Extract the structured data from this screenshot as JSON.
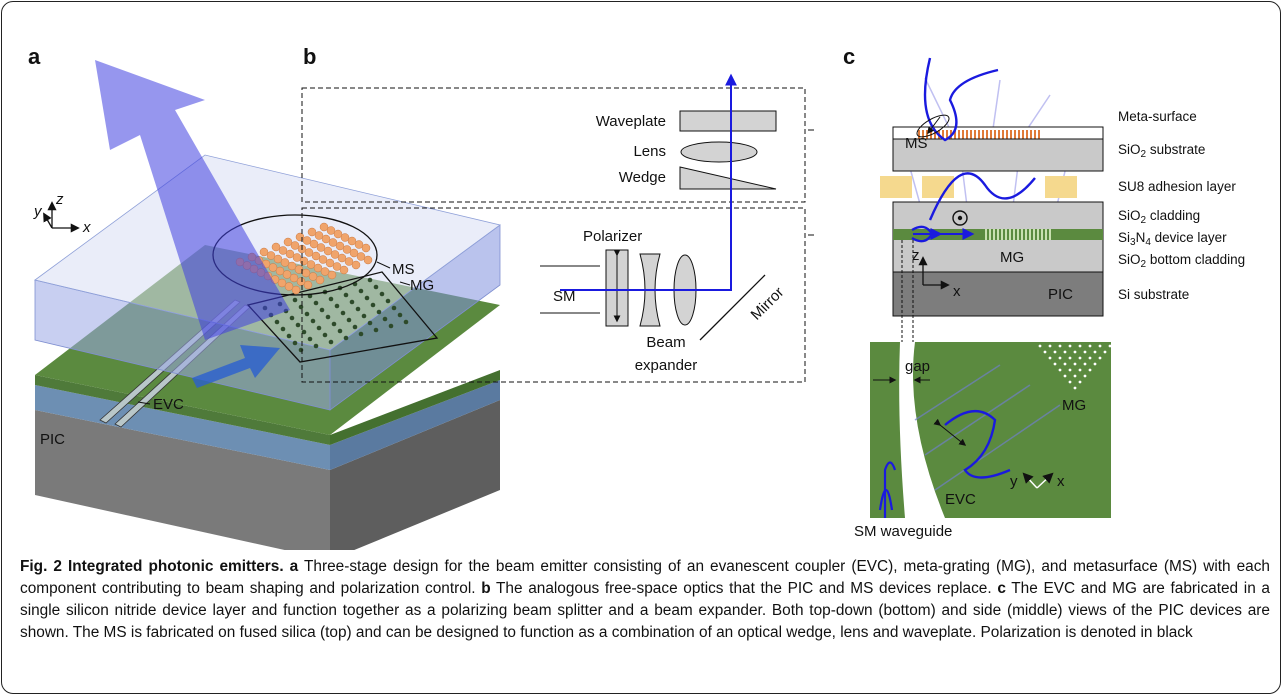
{
  "panel_a": {
    "label": "a",
    "axis_z": "z",
    "axis_y": "y",
    "axis_x": "x",
    "ms": "MS",
    "mg": "MG",
    "evc": "EVC",
    "pic": "PIC"
  },
  "panel_b": {
    "label": "b",
    "waveplate": "Waveplate",
    "lens": "Lens",
    "wedge": "Wedge",
    "polarizer": "Polarizer",
    "sm": "SM",
    "beam": "Beam",
    "expander": "expander",
    "mirror": "Mirror"
  },
  "panel_c": {
    "label": "c",
    "ms": "MS",
    "layers": [
      [
        "Meta-surface"
      ],
      [
        "SiO",
        "2",
        " substrate"
      ],
      [
        "SU8 adhesion layer"
      ],
      [
        "SiO",
        "2",
        " cladding"
      ],
      [
        "Si",
        "3",
        "N",
        "4",
        " device layer"
      ],
      [
        "SiO",
        "2",
        " bottom cladding"
      ],
      [
        "Si substrate"
      ]
    ],
    "axis_z": "z",
    "axis_x": "x",
    "mg_side": "MG",
    "pic": "PIC",
    "gap": "gap",
    "mg_top": "MG",
    "axis_y2": "y",
    "axis_x2": "x",
    "evc": "EVC",
    "sm_waveguide": "SM waveguide"
  },
  "caption": {
    "title": "Fig. 2 Integrated photonic emitters.",
    "parts": [
      {
        "label": "a",
        "text": "Three-stage design for the beam emitter consisting of an evanescent coupler (EVC), meta-grating (MG), and metasurface (MS) with each component contributing to beam shaping and polarization control."
      },
      {
        "label": "b",
        "text": "The analogous free-space optics that the PIC and MS devices replace."
      },
      {
        "label": "c",
        "text": "The EVC and MG are fabricated in a single silicon nitride device layer and function together as a polarizing beam splitter and a beam expander. Both top-down (bottom) and side (middle) views of the PIC devices are shown. The MS is fabricated on fused silica (top) and can be designed to function as a combination of an optical wedge, lens and waveplate. Polarization is denoted in black"
      }
    ]
  }
}
